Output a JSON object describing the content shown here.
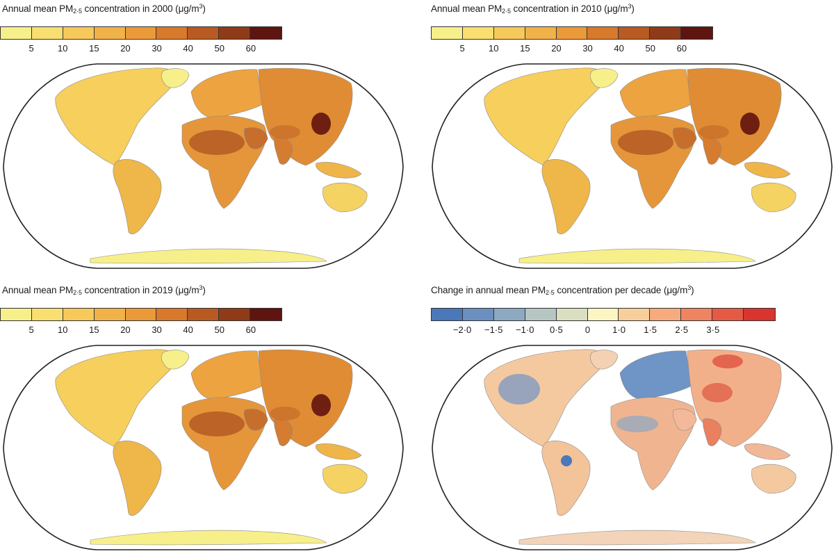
{
  "panels": [
    {
      "id": "pm2000",
      "title_prefix": "Annual mean PM",
      "title_sub": "2·5",
      "title_suffix": " concentration in 2000 (μg/m",
      "title_sup": "3",
      "title_close": ")",
      "legend_colors": [
        "#f7ef8a",
        "#f8df70",
        "#f6c95a",
        "#f2b24a",
        "#eb9a3a",
        "#d9792c",
        "#b95a22",
        "#8f3b18",
        "#5e1510"
      ],
      "legend_ticks": [
        "5",
        "10",
        "15",
        "20",
        "30",
        "40",
        "50",
        "60"
      ],
      "map_style": "pm"
    },
    {
      "id": "pm2010",
      "title_prefix": "Annual mean PM",
      "title_sub": "2·5",
      "title_suffix": " concentration in 2010 (μg/m",
      "title_sup": "3",
      "title_close": ")",
      "legend_colors": [
        "#f7ef8a",
        "#f8df70",
        "#f6c95a",
        "#f2b24a",
        "#eb9a3a",
        "#d9792c",
        "#b95a22",
        "#8f3b18",
        "#5e1510"
      ],
      "legend_ticks": [
        "5",
        "10",
        "15",
        "20",
        "30",
        "40",
        "50",
        "60"
      ],
      "map_style": "pm"
    },
    {
      "id": "pm2019",
      "title_prefix": "Annual mean PM",
      "title_sub": "2·5",
      "title_suffix": " concentration in 2019 (μg/m",
      "title_sup": "3",
      "title_close": ")",
      "legend_colors": [
        "#f7ef8a",
        "#f8df70",
        "#f6c95a",
        "#f2b24a",
        "#eb9a3a",
        "#d9792c",
        "#b95a22",
        "#8f3b18",
        "#5e1510"
      ],
      "legend_ticks": [
        "5",
        "10",
        "15",
        "20",
        "30",
        "40",
        "50",
        "60"
      ],
      "map_style": "pm"
    },
    {
      "id": "change",
      "title_prefix": "Change in annual mean PM",
      "title_sub": "2·5",
      "title_suffix": " concentration per decade (μg/m",
      "title_sup": "3",
      "title_close": ")",
      "legend_colors": [
        "#4a78b8",
        "#6b8fbf",
        "#8da9c2",
        "#b6c6c3",
        "#d9dfc0",
        "#fbf6c4",
        "#f8cf9a",
        "#f5ab7e",
        "#ef8462",
        "#e55a45",
        "#d8352f"
      ],
      "legend_ticks": [
        "−2·0",
        "−1·5",
        "−1·0",
        "0·5",
        "0",
        "1·0",
        "1·5",
        "2·5",
        "3·5"
      ],
      "map_style": "change"
    }
  ]
}
